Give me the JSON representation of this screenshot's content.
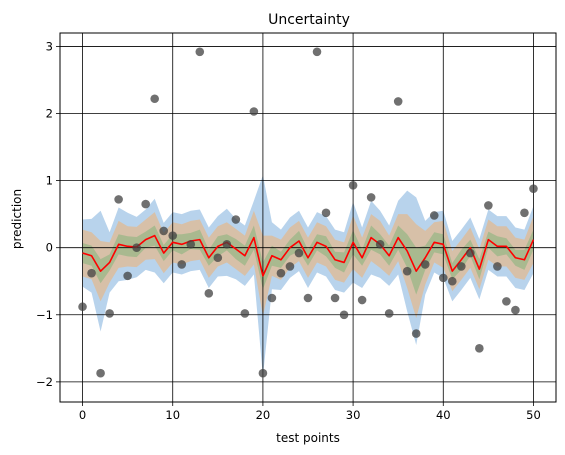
{
  "chart_data": {
    "type": "line",
    "title": "Uncertainty",
    "xlabel": "test points",
    "ylabel": "prediction",
    "xlim": [
      -2.5,
      52.5
    ],
    "ylim": [
      -2.3,
      3.2
    ],
    "xticks": [
      0,
      10,
      20,
      30,
      40,
      50
    ],
    "yticks": [
      -2,
      -1,
      0,
      1,
      2,
      3
    ],
    "grid": true,
    "colors": {
      "mean_line": "#ff0000",
      "points": "#404040",
      "band_outer": "#b8d3ec",
      "band_middle": "#d7c0a8",
      "band_inner": "#a9b98f",
      "grid": "#000000"
    },
    "x": [
      0,
      1,
      2,
      3,
      4,
      5,
      6,
      7,
      8,
      9,
      10,
      11,
      12,
      13,
      14,
      15,
      16,
      17,
      18,
      19,
      20,
      21,
      22,
      23,
      24,
      25,
      26,
      27,
      28,
      29,
      30,
      31,
      32,
      33,
      34,
      35,
      36,
      37,
      38,
      39,
      40,
      41,
      42,
      43,
      44,
      45,
      46,
      47,
      48,
      49,
      50
    ],
    "mean": [
      -0.08,
      -0.12,
      -0.35,
      -0.22,
      0.05,
      0.02,
      0.01,
      0.12,
      0.18,
      -0.08,
      0.08,
      0.05,
      0.1,
      0.12,
      -0.15,
      0.02,
      0.08,
      -0.02,
      -0.12,
      0.15,
      -0.42,
      -0.12,
      -0.18,
      0.0,
      0.1,
      -0.15,
      0.08,
      0.02,
      -0.18,
      -0.22,
      0.08,
      -0.15,
      0.15,
      0.05,
      -0.12,
      0.15,
      -0.05,
      -0.35,
      -0.15,
      0.08,
      0.05,
      -0.35,
      -0.18,
      0.0,
      -0.32,
      0.12,
      0.02,
      0.02,
      -0.15,
      -0.18,
      0.12
    ],
    "band_inner": [
      0.15,
      0.15,
      0.18,
      0.12,
      0.15,
      0.15,
      0.15,
      0.12,
      0.15,
      0.12,
      0.12,
      0.15,
      0.12,
      0.15,
      0.12,
      0.15,
      0.12,
      0.15,
      0.15,
      0.18,
      0.2,
      0.15,
      0.12,
      0.12,
      0.15,
      0.12,
      0.12,
      0.15,
      0.12,
      0.15,
      0.18,
      0.12,
      0.18,
      0.15,
      0.15,
      0.18,
      0.25,
      0.35,
      0.18,
      0.15,
      0.15,
      0.12,
      0.15,
      0.12,
      0.15,
      0.12,
      0.15,
      0.12,
      0.12,
      0.15,
      0.15
    ],
    "band_middle": [
      0.35,
      0.35,
      0.45,
      0.3,
      0.35,
      0.3,
      0.3,
      0.3,
      0.35,
      0.3,
      0.3,
      0.3,
      0.3,
      0.3,
      0.3,
      0.3,
      0.3,
      0.3,
      0.3,
      0.4,
      0.6,
      0.3,
      0.3,
      0.3,
      0.3,
      0.3,
      0.3,
      0.3,
      0.3,
      0.3,
      0.4,
      0.3,
      0.35,
      0.35,
      0.3,
      0.35,
      0.55,
      0.7,
      0.4,
      0.3,
      0.35,
      0.3,
      0.3,
      0.3,
      0.3,
      0.3,
      0.3,
      0.3,
      0.3,
      0.3,
      0.35
    ],
    "band_outer": [
      0.5,
      0.55,
      0.9,
      0.45,
      0.55,
      0.5,
      0.45,
      0.45,
      0.55,
      0.45,
      0.45,
      0.45,
      0.45,
      0.45,
      0.45,
      0.45,
      0.5,
      0.45,
      0.45,
      0.55,
      1.5,
      0.5,
      0.45,
      0.45,
      0.45,
      0.45,
      0.45,
      0.45,
      0.45,
      0.45,
      0.6,
      0.45,
      0.55,
      0.5,
      0.45,
      0.55,
      0.9,
      1.1,
      0.55,
      0.45,
      0.5,
      0.45,
      0.45,
      0.45,
      0.45,
      0.45,
      0.45,
      0.45,
      0.45,
      0.45,
      0.5
    ],
    "points": [
      [
        0,
        -0.88
      ],
      [
        1,
        -0.38
      ],
      [
        2,
        -1.87
      ],
      [
        3,
        -0.98
      ],
      [
        4,
        0.72
      ],
      [
        5,
        -0.42
      ],
      [
        6,
        0.0
      ],
      [
        7,
        0.65
      ],
      [
        8,
        2.22
      ],
      [
        9,
        0.25
      ],
      [
        10,
        0.18
      ],
      [
        11,
        -0.25
      ],
      [
        12,
        0.05
      ],
      [
        13,
        2.92
      ],
      [
        14,
        -0.68
      ],
      [
        15,
        -0.15
      ],
      [
        16,
        0.05
      ],
      [
        17,
        0.42
      ],
      [
        18,
        -0.98
      ],
      [
        19,
        2.03
      ],
      [
        20,
        -1.87
      ],
      [
        21,
        -0.75
      ],
      [
        22,
        -0.38
      ],
      [
        23,
        -0.28
      ],
      [
        24,
        -0.08
      ],
      [
        25,
        -0.75
      ],
      [
        26,
        2.92
      ],
      [
        27,
        0.52
      ],
      [
        28,
        -0.75
      ],
      [
        29,
        -1.0
      ],
      [
        30,
        0.93
      ],
      [
        31,
        -0.78
      ],
      [
        32,
        0.75
      ],
      [
        33,
        0.05
      ],
      [
        34,
        -0.98
      ],
      [
        35,
        2.18
      ],
      [
        36,
        -0.35
      ],
      [
        37,
        -1.28
      ],
      [
        38,
        -0.25
      ],
      [
        39,
        0.48
      ],
      [
        40,
        -0.45
      ],
      [
        41,
        -0.5
      ],
      [
        42,
        -0.28
      ],
      [
        43,
        -0.08
      ],
      [
        44,
        -1.5
      ],
      [
        45,
        0.63
      ],
      [
        46,
        -0.28
      ],
      [
        47,
        -0.8
      ],
      [
        48,
        -0.93
      ],
      [
        49,
        0.52
      ],
      [
        50,
        0.88
      ]
    ]
  }
}
